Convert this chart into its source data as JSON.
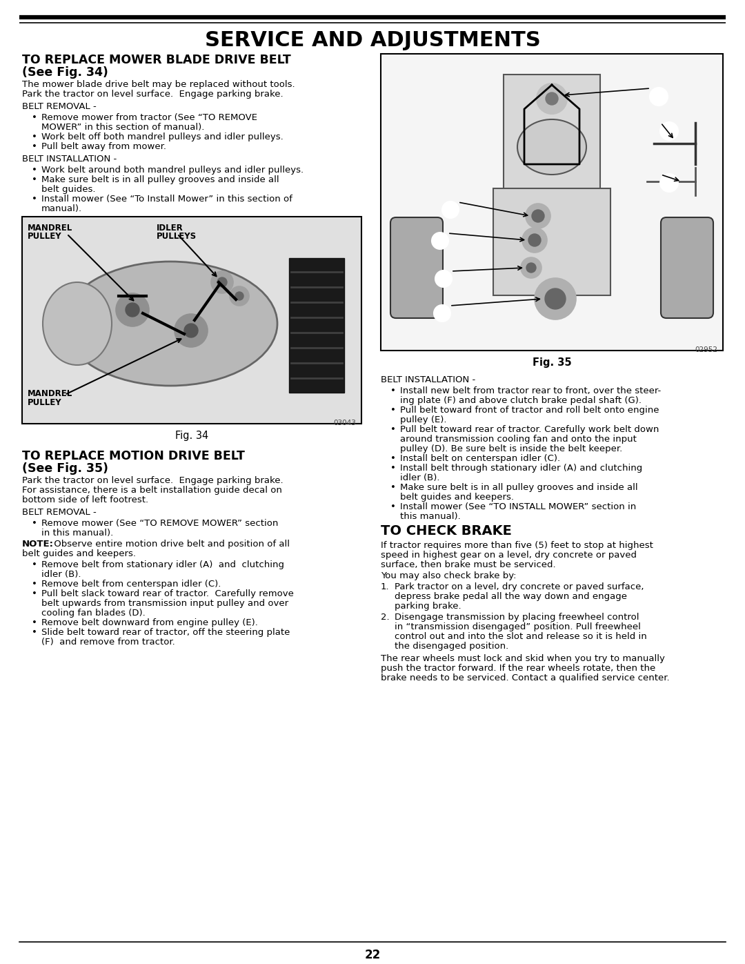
{
  "page_title": "SERVICE AND ADJUSTMENTS",
  "s1_h1": "TO REPLACE MOWER BLADE DRIVE BELT",
  "s1_h2": "(See Fig. 34)",
  "s1_intro1": "The mower blade drive belt may be replaced without tools.",
  "s1_intro2": "Park the tractor on level surface.  Engage parking brake.",
  "s1_rem_hdr": "BELT REMOVAL -",
  "s1_rem_b1a": "Remove mower from tractor (See “TO REMOVE",
  "s1_rem_b1b": "MOWER” in this section of manual).",
  "s1_rem_b2": "Work belt off both mandrel pulleys and idler pulleys.",
  "s1_rem_b3": "Pull belt away from mower.",
  "s1_ins_hdr": "BELT INSTALLATION -",
  "s1_ins_b1": "Work belt around both mandrel pulleys and idler pulleys.",
  "s1_ins_b2a": "Make sure belt is in all pulley grooves and inside all",
  "s1_ins_b2b": "belt guides.",
  "s1_ins_b3a": "Install mower (See “To Install Mower” in this section of",
  "s1_ins_b3b": "manual).",
  "fig34_cap": "Fig. 34",
  "fig34_code": "03043",
  "s2_h1": "TO REPLACE MOTION DRIVE BELT",
  "s2_h2": "(See Fig. 35)",
  "s2_intro1": "Park the tractor on level surface.  Engage parking brake.",
  "s2_intro2": "For assistance, there is a belt installation guide decal on",
  "s2_intro3": "bottom side of left footrest.",
  "s2_rem_hdr": "BELT REMOVAL -",
  "s2_rem_b1a": "Remove mower (See “TO REMOVE MOWER” section",
  "s2_rem_b1b": "in this manual).",
  "note_bold": "NOTE:",
  "note_rest1": " Observe entire motion drive belt and position of all",
  "note_rest2": "belt guides and keepers.",
  "s2_rem_b2a": "Remove belt from stationary idler (A)  and  clutching",
  "s2_rem_b2b": "idler (B).",
  "s2_rem_b3": "Remove belt from centerspan idler (C).",
  "s2_rem_b4a": "Pull belt slack toward rear of tractor.  Carefully remove",
  "s2_rem_b4b": "belt upwards from transmission input pulley and over",
  "s2_rem_b4c": "cooling fan blades (D).",
  "s2_rem_b5": "Remove belt downward from engine pulley (E).",
  "s2_rem_b6a": "Slide belt toward rear of tractor, off the steering plate",
  "s2_rem_b6b": "(F)  and remove from tractor.",
  "fig35_cap": "Fig. 35",
  "fig35_code": "02952",
  "r_ins_hdr": "BELT INSTALLATION -",
  "r_ins_b1a": "Install new belt from tractor rear to front, over the steer-",
  "r_ins_b1b": "ing plate (F) and above clutch brake pedal shaft (G).",
  "r_ins_b2a": "Pull belt toward front of tractor and roll belt onto engine",
  "r_ins_b2b": "pulley (E).",
  "r_ins_b3a": "Pull belt toward rear of tractor. Carefully work belt down",
  "r_ins_b3b": "around transmission cooling fan and onto the input",
  "r_ins_b3c": "pulley (D). Be sure belt is inside the belt keeper.",
  "r_ins_b4": "Install belt on centerspan idler (C).",
  "r_ins_b5a": "Install belt through stationary idler (A) and clutching",
  "r_ins_b5b": "idler (B).",
  "r_ins_b6a": "Make sure belt is in all pulley grooves and inside all",
  "r_ins_b6b": "belt guides and keepers.",
  "r_ins_b7a": "Install mower (See “TO INSTALL MOWER” section in",
  "r_ins_b7b": "this manual).",
  "s3_title": "TO CHECK BRAKE",
  "s3_p1a": "If tractor requires more than five (5) feet to stop at highest",
  "s3_p1b": "speed in highest gear on a level, dry concrete or paved",
  "s3_p1c": "surface, then brake must be serviced.",
  "s3_p2": "You may also check brake by:",
  "s3_n1a": "Park tractor on a level, dry concrete or paved surface,",
  "s3_n1b": "depress brake pedal all the way down and engage",
  "s3_n1c": "parking brake.",
  "s3_n2a": "Disengage transmission by placing freewheel control",
  "s3_n2b": "in “transmission disengaged” position. Pull freewheel",
  "s3_n2c": "control out and into the slot and release so it is held in",
  "s3_n2d": "the disengaged position.",
  "s3_cla": "The rear wheels must lock and skid when you try to manually",
  "s3_clb": "push the tractor forward. If the rear wheels rotate, then the",
  "s3_clc": "brake needs to be serviced. Contact a qualified service center.",
  "page_num": "22"
}
